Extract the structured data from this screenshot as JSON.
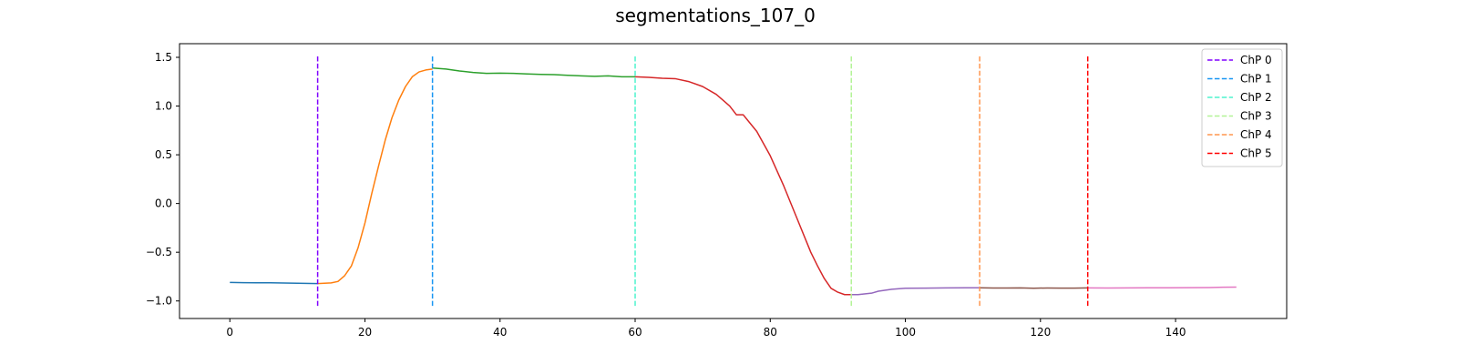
{
  "chart_data": {
    "type": "line",
    "title": "segmentations_107_0",
    "xlabel": "",
    "ylabel": "",
    "xlim": [
      -7.45,
      156.45
    ],
    "ylim": [
      -1.18,
      1.64
    ],
    "x_ticks": [
      0,
      20,
      40,
      60,
      80,
      100,
      120,
      140
    ],
    "y_ticks": [
      -1.0,
      -0.5,
      0.0,
      0.5,
      1.0,
      1.5
    ],
    "x_tick_labels": [
      "0",
      "20",
      "40",
      "60",
      "80",
      "100",
      "120",
      "140"
    ],
    "y_tick_labels": [
      "−1.0",
      "−0.5",
      "0.0",
      "0.5",
      "1.0",
      "1.5"
    ],
    "grid": false,
    "legend_position": "top-right",
    "series": [
      {
        "color": "#1f77b4",
        "points": [
          [
            0,
            -0.81
          ],
          [
            2,
            -0.812
          ],
          [
            4,
            -0.813
          ],
          [
            6,
            -0.814
          ],
          [
            8,
            -0.816
          ],
          [
            10,
            -0.818
          ],
          [
            12,
            -0.82
          ],
          [
            13,
            -0.822
          ]
        ]
      },
      {
        "color": "#ff7f0e",
        "points": [
          [
            13,
            -0.822
          ],
          [
            15,
            -0.815
          ],
          [
            16,
            -0.8
          ],
          [
            17,
            -0.74
          ],
          [
            18,
            -0.64
          ],
          [
            19,
            -0.45
          ],
          [
            20,
            -0.2
          ],
          [
            21,
            0.1
          ],
          [
            22,
            0.38
          ],
          [
            23,
            0.65
          ],
          [
            24,
            0.88
          ],
          [
            25,
            1.06
          ],
          [
            26,
            1.2
          ],
          [
            27,
            1.3
          ],
          [
            28,
            1.35
          ],
          [
            29,
            1.37
          ],
          [
            30,
            1.38
          ]
        ]
      },
      {
        "color": "#2ca02c",
        "points": [
          [
            30,
            1.39
          ],
          [
            32,
            1.38
          ],
          [
            34,
            1.36
          ],
          [
            36,
            1.345
          ],
          [
            38,
            1.335
          ],
          [
            40,
            1.338
          ],
          [
            42,
            1.335
          ],
          [
            44,
            1.33
          ],
          [
            46,
            1.325
          ],
          [
            48,
            1.322
          ],
          [
            50,
            1.315
          ],
          [
            52,
            1.31
          ],
          [
            54,
            1.305
          ],
          [
            56,
            1.31
          ],
          [
            58,
            1.3
          ],
          [
            60,
            1.3
          ]
        ]
      },
      {
        "color": "#d62728",
        "points": [
          [
            60,
            1.3
          ],
          [
            62,
            1.295
          ],
          [
            64,
            1.285
          ],
          [
            66,
            1.28
          ],
          [
            68,
            1.25
          ],
          [
            70,
            1.2
          ],
          [
            72,
            1.12
          ],
          [
            73,
            1.06
          ],
          [
            74,
            1.0
          ],
          [
            75,
            0.91
          ],
          [
            76,
            0.91
          ],
          [
            78,
            0.74
          ],
          [
            80,
            0.49
          ],
          [
            82,
            0.18
          ],
          [
            84,
            -0.16
          ],
          [
            86,
            -0.5
          ],
          [
            87,
            -0.64
          ],
          [
            88,
            -0.77
          ],
          [
            89,
            -0.87
          ],
          [
            90,
            -0.91
          ],
          [
            91,
            -0.935
          ],
          [
            92,
            -0.935
          ]
        ]
      },
      {
        "color": "#9467bd",
        "points": [
          [
            92,
            -0.935
          ],
          [
            93,
            -0.935
          ],
          [
            95,
            -0.92
          ],
          [
            96,
            -0.9
          ],
          [
            98,
            -0.88
          ],
          [
            100,
            -0.87
          ],
          [
            103,
            -0.868
          ],
          [
            106,
            -0.866
          ],
          [
            109,
            -0.865
          ],
          [
            111,
            -0.865
          ]
        ]
      },
      {
        "color": "#8c564b",
        "points": [
          [
            111,
            -0.865
          ],
          [
            113,
            -0.867
          ],
          [
            115,
            -0.867
          ],
          [
            117,
            -0.866
          ],
          [
            119,
            -0.869
          ],
          [
            121,
            -0.867
          ],
          [
            123,
            -0.868
          ],
          [
            125,
            -0.868
          ],
          [
            127,
            -0.866
          ]
        ]
      },
      {
        "color": "#e377c2",
        "points": [
          [
            127,
            -0.866
          ],
          [
            130,
            -0.867
          ],
          [
            133,
            -0.866
          ],
          [
            136,
            -0.865
          ],
          [
            139,
            -0.865
          ],
          [
            142,
            -0.864
          ],
          [
            145,
            -0.862
          ],
          [
            147,
            -0.859
          ],
          [
            149,
            -0.858
          ]
        ]
      }
    ],
    "changepoints": [
      {
        "name": "ChP 0",
        "x": 13,
        "color": "#8000ff"
      },
      {
        "name": "ChP 1",
        "x": 30,
        "color": "#1996f3"
      },
      {
        "name": "ChP 2",
        "x": 60,
        "color": "#4df3ce"
      },
      {
        "name": "ChP 3",
        "x": 92,
        "color": "#b2f396"
      },
      {
        "name": "ChP 4",
        "x": 111,
        "color": "#ff964f"
      },
      {
        "name": "ChP 5",
        "x": 127,
        "color": "#ff0000"
      }
    ],
    "changepoint_y_range": [
      -1.05,
      1.51
    ]
  }
}
